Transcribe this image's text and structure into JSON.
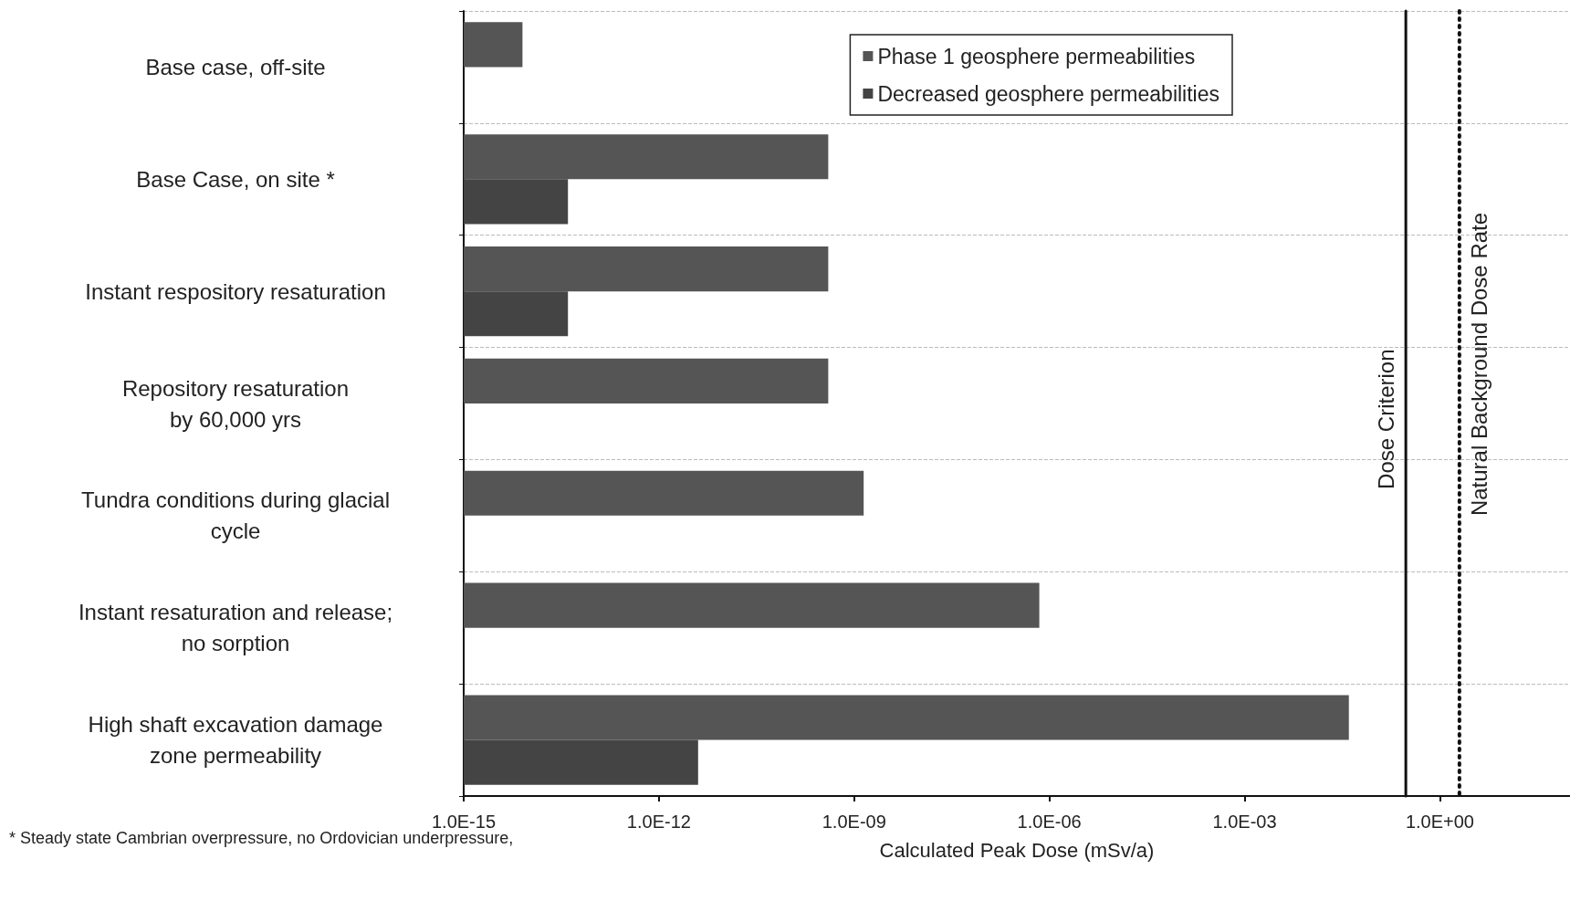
{
  "chart_data": {
    "type": "bar",
    "orientation": "horizontal",
    "log": "x",
    "categories": [
      "Base case, off-site",
      "Base Case, on site *",
      "Instant respository resaturation",
      "Repository resaturation\nby 60,000 yrs",
      "Tundra conditions during glacial\ncycle",
      "Instant resaturation and release;\nno sorption",
      "High shaft excavation damage\nzone permeability"
    ],
    "series": [
      {
        "name": "Phase 1 geosphere permeabilities",
        "color": "#555555",
        "values": [
          8e-15,
          4e-10,
          4e-10,
          4e-10,
          1.4e-09,
          7e-07,
          0.04
        ]
      },
      {
        "name": "Decreased geosphere permeabilities",
        "color": "#444444",
        "values": [
          null,
          4e-14,
          4e-14,
          null,
          null,
          null,
          4e-12
        ]
      }
    ],
    "xlabel": "Calculated Peak Dose (mSv/a)",
    "xlim": [
      1e-15,
      100
    ],
    "xticks": [
      {
        "value": 1e-15,
        "label": "1.0E-15"
      },
      {
        "value": 1e-12,
        "label": "1.0E-12"
      },
      {
        "value": 1e-09,
        "label": "1.0E-09"
      },
      {
        "value": 1e-06,
        "label": "1.0E-06"
      },
      {
        "value": 0.001,
        "label": "1.0E-03"
      },
      {
        "value": 1,
        "label": "1.0E+00"
      }
    ],
    "ref_lines": [
      {
        "axis": "x",
        "value": 0.3,
        "label": "Dose Criterion",
        "color": "#111111",
        "line_style": "solid"
      },
      {
        "axis": "x",
        "value": 2,
        "label": "Natural Background Dose Rate",
        "color": "#111111",
        "line_style": "dotted"
      }
    ],
    "annotations": [
      "* Steady state Cambrian overpressure, no Ordovician underpressure,"
    ],
    "grid": "y",
    "legend": "top right"
  }
}
